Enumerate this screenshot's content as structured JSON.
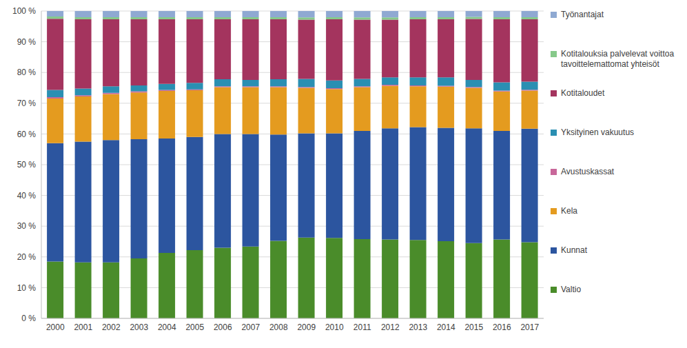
{
  "chart_data": {
    "type": "bar",
    "stacked": true,
    "grid": true,
    "legend": "right",
    "categories": [
      "2000",
      "2001",
      "2002",
      "2003",
      "2004",
      "2005",
      "2006",
      "2007",
      "2008",
      "2009",
      "2010",
      "2011",
      "2012",
      "2013",
      "2014",
      "2015",
      "2016",
      "2017"
    ],
    "ylim": [
      0,
      100
    ],
    "yticks": [
      {
        "value": 0,
        "label": "0 %"
      },
      {
        "value": 10,
        "label": "10 %"
      },
      {
        "value": 20,
        "label": "20 %"
      },
      {
        "value": 30,
        "label": "30 %"
      },
      {
        "value": 40,
        "label": "40 %"
      },
      {
        "value": 50,
        "label": "50 %"
      },
      {
        "value": 60,
        "label": "60 %"
      },
      {
        "value": 70,
        "label": "70 %"
      },
      {
        "value": 80,
        "label": "80 %"
      },
      {
        "value": 90,
        "label": "90 %"
      },
      {
        "value": 100,
        "label": "100 %"
      }
    ],
    "series": [
      {
        "name": "Valtio",
        "color": "#4a8c2a",
        "values": [
          18.5,
          18.2,
          18.2,
          19.5,
          21.3,
          22.2,
          23.0,
          23.4,
          25.2,
          26.3,
          26.2,
          25.8,
          25.7,
          25.5,
          25.1,
          24.5,
          25.7,
          24.8
        ]
      },
      {
        "name": "Kunnat",
        "color": "#2c559f",
        "values": [
          38.5,
          39.3,
          39.8,
          38.8,
          37.2,
          36.8,
          37.0,
          36.6,
          34.6,
          33.9,
          34.0,
          35.2,
          36.1,
          36.7,
          36.9,
          37.3,
          35.3,
          36.9
        ]
      },
      {
        "name": "Kela",
        "color": "#e49b1f",
        "values": [
          14.5,
          14.7,
          15.0,
          15.2,
          15.5,
          15.2,
          15.2,
          15.2,
          15.4,
          14.8,
          14.4,
          14.2,
          13.9,
          13.3,
          13.4,
          13.2,
          12.8,
          12.4
        ]
      },
      {
        "name": "Avustuskassat",
        "color": "#c8679a",
        "values": [
          0.5,
          0.4,
          0.4,
          0.4,
          0.3,
          0.3,
          0.3,
          0.3,
          0.3,
          0.3,
          0.3,
          0.3,
          0.3,
          0.3,
          0.3,
          0.3,
          0.3,
          0.3
        ]
      },
      {
        "name": "Yksityinen vakuutus",
        "color": "#2a8fb2",
        "values": [
          2.3,
          2.2,
          2.1,
          1.9,
          2.0,
          2.1,
          2.3,
          2.1,
          2.3,
          2.6,
          2.5,
          2.4,
          2.4,
          2.6,
          2.7,
          2.3,
          2.7,
          2.6
        ]
      },
      {
        "name": "Kotitaloudet",
        "color": "#a4345e",
        "values": [
          23.2,
          22.5,
          21.8,
          21.5,
          21.0,
          20.7,
          19.5,
          19.7,
          19.5,
          19.3,
          19.9,
          19.3,
          18.8,
          18.9,
          18.9,
          19.8,
          20.5,
          20.3
        ]
      },
      {
        "name": "Kotitalouksia palvelevat voittoa tavoittelemattomat yhteisöt",
        "color": "#86c98a",
        "values": [
          0.7,
          0.7,
          0.7,
          0.7,
          0.7,
          0.7,
          0.7,
          0.7,
          0.7,
          0.7,
          0.7,
          0.7,
          0.7,
          0.7,
          0.7,
          0.7,
          0.7,
          0.7
        ]
      },
      {
        "name": "Työnantajat",
        "color": "#8fa9d2",
        "values": [
          1.8,
          2.0,
          2.0,
          2.0,
          2.0,
          2.0,
          2.0,
          2.0,
          2.0,
          2.1,
          2.0,
          2.1,
          2.1,
          2.0,
          2.0,
          1.9,
          2.0,
          2.0
        ]
      }
    ]
  }
}
